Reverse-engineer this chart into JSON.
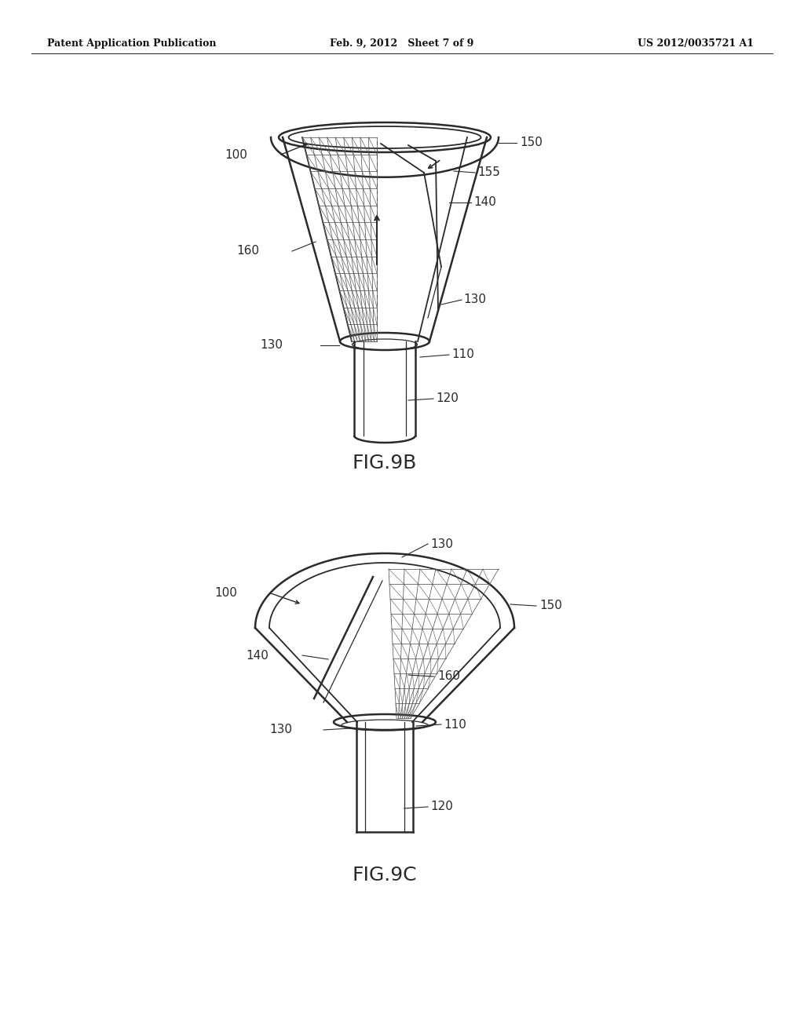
{
  "background_color": "#ffffff",
  "line_color": "#2a2a2a",
  "header_left": "Patent Application Publication",
  "header_center": "Feb. 9, 2012   Sheet 7 of 9",
  "header_right": "US 2012/0035721 A1",
  "fig9b_label": "FIG.9B",
  "fig9c_label": "FIG.9C"
}
